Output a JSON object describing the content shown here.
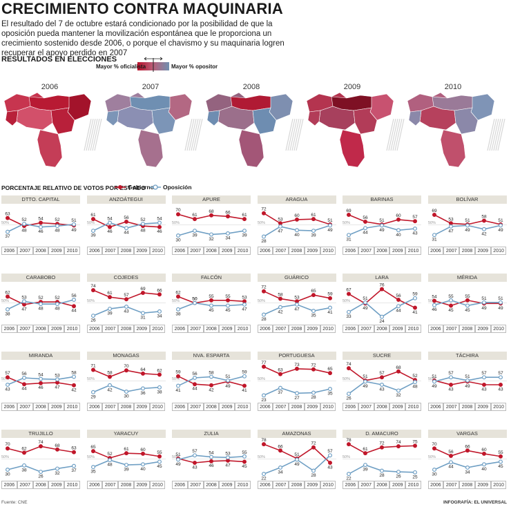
{
  "header": {
    "title": "CRECIMIENTO CONTRA MAQUINARIA",
    "intro": "El resultado del 7 de octubre estará condicionado por la posibilidad de que la oposición pueda mantener la movilización espontánea que le proporciona un crecimiento sostenido desde 2006, o porque el chavismo y su maquinaria logren recuperar el apoyo perdido en 2007"
  },
  "maps": {
    "section_title": "RESULTADOS EN ELECCIONES",
    "legend_left": "Mayor % oficialista",
    "legend_right": "Mayor % opositor",
    "years": [
      "2006",
      "2007",
      "2008",
      "2009",
      "2010"
    ]
  },
  "chart_section": {
    "title": "PORCENTAJE RELATIVO DE VOTOS POR EST ADO",
    "gov_label": "Gobierno",
    "opp_label": "Oposición",
    "gov_color": "#c0172a",
    "opp_color": "#6f9fc4",
    "ref_label": "50%"
  },
  "chart_data": {
    "type": "line",
    "x": [
      "2006",
      "2007",
      "2008",
      "2009",
      "2010"
    ],
    "ylim": [
      0,
      100
    ],
    "panels": [
      {
        "title": "DTTO. CAPITAL",
        "series": [
          {
            "name": "Gobierno",
            "values": [
              63,
              48,
              54,
              52,
              49
            ]
          },
          {
            "name": "Oposición",
            "values": [
              37,
              52,
              46,
              48,
              51
            ]
          }
        ]
      },
      {
        "title": "ANZOÁTEGUI",
        "series": [
          {
            "name": "Gobierno",
            "values": [
              61,
              46,
              56,
              48,
              46
            ]
          },
          {
            "name": "Oposición",
            "values": [
              39,
              54,
              44,
              52,
              54
            ]
          }
        ]
      },
      {
        "title": "APURE",
        "series": [
          {
            "name": "Gobierno",
            "values": [
              70,
              61,
              68,
              66,
              61
            ]
          },
          {
            "name": "Oposición",
            "values": [
              30,
              39,
              32,
              34,
              39
            ]
          }
        ]
      },
      {
        "title": "ARAGUA",
        "series": [
          {
            "name": "Gobierno",
            "values": [
              72,
              53,
              60,
              61,
              51
            ]
          },
          {
            "name": "Oposición",
            "values": [
              28,
              47,
              40,
              39,
              49
            ]
          }
        ]
      },
      {
        "title": "BARINAS",
        "series": [
          {
            "name": "Gobierno",
            "values": [
              69,
              56,
              51,
              60,
              57
            ]
          },
          {
            "name": "Oposición",
            "values": [
              31,
              44,
              49,
              40,
              43
            ]
          }
        ]
      },
      {
        "title": "BOLÍVAR",
        "series": [
          {
            "name": "Gobierno",
            "values": [
              69,
              53,
              51,
              58,
              51
            ]
          },
          {
            "name": "Oposición",
            "values": [
              31,
              47,
              49,
              42,
              49
            ]
          }
        ]
      },
      {
        "title": "CARABOBO",
        "series": [
          {
            "name": "Gobierno",
            "values": [
              62,
              47,
              52,
              52,
              44
            ]
          },
          {
            "name": "Oposición",
            "values": [
              38,
              53,
              48,
              48,
              56
            ]
          }
        ]
      },
      {
        "title": "COJEDES",
        "series": [
          {
            "name": "Gobierno",
            "values": [
              74,
              61,
              57,
              69,
              66
            ]
          },
          {
            "name": "Oposición",
            "values": [
              26,
              39,
              43,
              31,
              34
            ]
          }
        ]
      },
      {
        "title": "FALCÓN",
        "series": [
          {
            "name": "Gobierno",
            "values": [
              62,
              50,
              55,
              55,
              53
            ]
          },
          {
            "name": "Oposición",
            "values": [
              38,
              50,
              45,
              45,
              47
            ]
          }
        ]
      },
      {
        "title": "GUÁRICO",
        "series": [
          {
            "name": "Gobierno",
            "values": [
              72,
              58,
              53,
              65,
              59
            ]
          },
          {
            "name": "Oposición",
            "values": [
              28,
              42,
              47,
              35,
              41
            ]
          }
        ]
      },
      {
        "title": "LARA",
        "series": [
          {
            "name": "Gobierno",
            "values": [
              67,
              49,
              76,
              56,
              41
            ]
          },
          {
            "name": "Oposición",
            "values": [
              33,
              51,
              24,
              44,
              59
            ]
          }
        ]
      },
      {
        "title": "MÉRIDA",
        "series": [
          {
            "name": "Gobierno",
            "values": [
              54,
              45,
              55,
              49,
              49
            ]
          },
          {
            "name": "Oposición",
            "values": [
              46,
              55,
              45,
              51,
              51
            ]
          }
        ]
      },
      {
        "title": "MIRANDA",
        "series": [
          {
            "name": "Gobierno",
            "values": [
              57,
              44,
              46,
              47,
              42
            ]
          },
          {
            "name": "Oposición",
            "values": [
              43,
              56,
              54,
              53,
              58
            ]
          }
        ]
      },
      {
        "title": "MONAGAS",
        "series": [
          {
            "name": "Gobierno",
            "values": [
              71,
              58,
              70,
              64,
              62
            ]
          },
          {
            "name": "Oposición",
            "values": [
              29,
              42,
              30,
              36,
              38
            ]
          }
        ]
      },
      {
        "title": "NVA. ESPARTA",
        "series": [
          {
            "name": "Gobierno",
            "values": [
              59,
              44,
              42,
              49,
              41
            ]
          },
          {
            "name": "Oposición",
            "values": [
              41,
              56,
              58,
              51,
              59
            ]
          }
        ]
      },
      {
        "title": "PORTUGUESA",
        "series": [
          {
            "name": "Gobierno",
            "values": [
              77,
              63,
              73,
              72,
              65
            ]
          },
          {
            "name": "Oposición",
            "values": [
              23,
              37,
              27,
              28,
              35
            ]
          }
        ]
      },
      {
        "title": "SUCRE",
        "series": [
          {
            "name": "Gobierno",
            "values": [
              74,
              51,
              57,
              68,
              52
            ]
          },
          {
            "name": "Oposición",
            "values": [
              26,
              49,
              43,
              32,
              48
            ]
          }
        ]
      },
      {
        "title": "TÁCHIRA",
        "series": [
          {
            "name": "Gobierno",
            "values": [
              51,
              43,
              49,
              43,
              43
            ]
          },
          {
            "name": "Oposición",
            "values": [
              49,
              57,
              51,
              57,
              57
            ]
          }
        ]
      },
      {
        "title": "TRUJILLO",
        "series": [
          {
            "name": "Gobierno",
            "values": [
              70,
              62,
              74,
              68,
              63
            ]
          },
          {
            "name": "Oposición",
            "values": [
              30,
              38,
              26,
              32,
              37
            ]
          }
        ]
      },
      {
        "title": "YARACUY",
        "series": [
          {
            "name": "Gobierno",
            "values": [
              65,
              52,
              61,
              60,
              55
            ]
          },
          {
            "name": "Oposición",
            "values": [
              35,
              48,
              39,
              40,
              45
            ]
          }
        ]
      },
      {
        "title": "ZULIA",
        "series": [
          {
            "name": "Gobierno",
            "values": [
              51,
              43,
              46,
              47,
              45
            ]
          },
          {
            "name": "Oposición",
            "values": [
              49,
              57,
              54,
              53,
              55
            ]
          }
        ]
      },
      {
        "title": "AMAZONAS",
        "series": [
          {
            "name": "Gobierno",
            "values": [
              78,
              66,
              51,
              72,
              43
            ]
          },
          {
            "name": "Oposición",
            "values": [
              22,
              34,
              49,
              28,
              57
            ]
          }
        ]
      },
      {
        "title": "D. AMACURO",
        "series": [
          {
            "name": "Gobierno",
            "values": [
              78,
              61,
              72,
              74,
              75
            ]
          },
          {
            "name": "Oposición",
            "values": [
              22,
              39,
              28,
              26,
              25
            ]
          }
        ]
      },
      {
        "title": "VARGAS",
        "series": [
          {
            "name": "Gobierno",
            "values": [
              70,
              56,
              66,
              60,
              55
            ]
          },
          {
            "name": "Oposición",
            "values": [
              30,
              44,
              34,
              40,
              45
            ]
          }
        ]
      }
    ]
  },
  "footer": {
    "source": "Fuente: CNE",
    "credit": "INFOGRAFÍA: EL UNIVERSAL"
  }
}
